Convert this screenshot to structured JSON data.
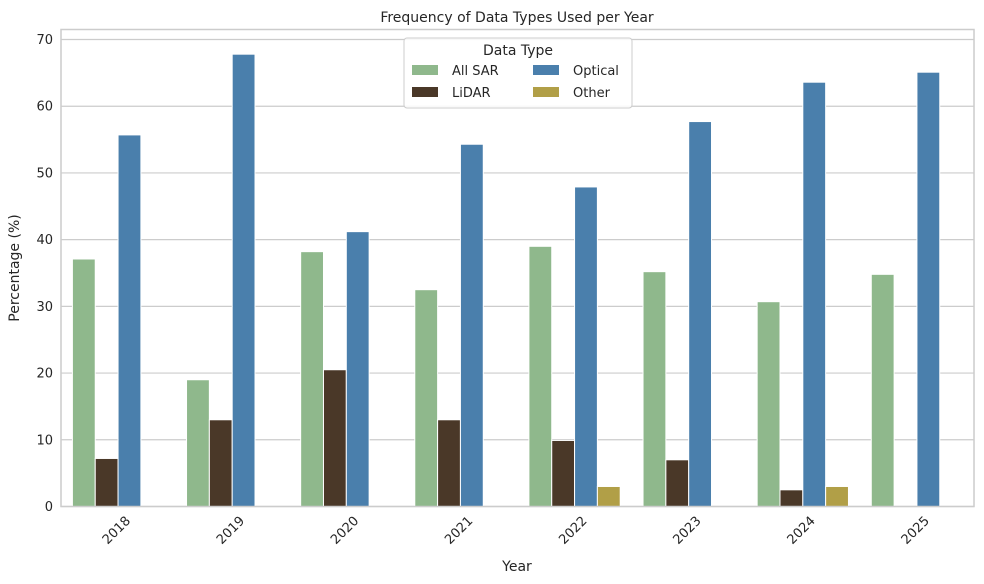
{
  "chart_data": {
    "type": "bar",
    "title": "Frequency of Data Types Used per Year",
    "xlabel": "Year",
    "ylabel": "Percentage (%)",
    "categories": [
      "2018",
      "2019",
      "2020",
      "2021",
      "2022",
      "2023",
      "2024",
      "2025"
    ],
    "ylim": [
      0,
      71.5
    ],
    "yticks": [
      0,
      10,
      20,
      30,
      40,
      50,
      60,
      70
    ],
    "grid": true,
    "legend": {
      "title": "Data Type",
      "placement": "top-center",
      "columns": 2
    },
    "series": [
      {
        "name": "All SAR",
        "color": "#8fb88c",
        "values": [
          37.1,
          19.0,
          38.2,
          32.5,
          39.0,
          35.2,
          30.7,
          34.8
        ]
      },
      {
        "name": "LiDAR",
        "color": "#4a3828",
        "values": [
          7.2,
          13.0,
          20.5,
          13.0,
          9.9,
          7.0,
          2.5,
          0
        ]
      },
      {
        "name": "Optical",
        "color": "#4a7fac",
        "values": [
          55.7,
          67.8,
          41.2,
          54.3,
          47.9,
          57.7,
          63.6,
          65.1
        ]
      },
      {
        "name": "Other",
        "color": "#b19f47",
        "values": [
          0,
          0,
          0,
          0,
          3.0,
          0,
          3.0,
          0
        ]
      }
    ]
  }
}
